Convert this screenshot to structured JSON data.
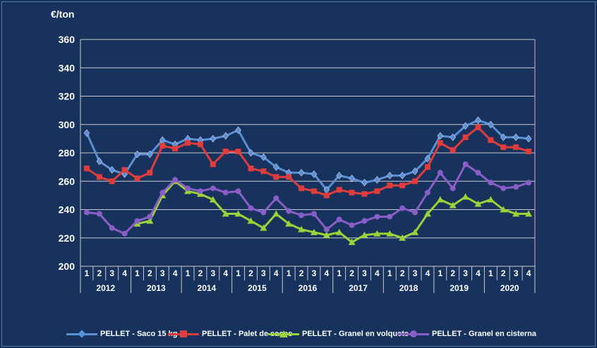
{
  "chart_data": {
    "type": "line",
    "ylabel": "€/ton",
    "ylim": [
      200,
      360
    ],
    "yticks": [
      200,
      220,
      240,
      260,
      280,
      300,
      320,
      340,
      360
    ],
    "quarters": [
      "1",
      "2",
      "3",
      "4",
      "1",
      "2",
      "3",
      "4",
      "1",
      "2",
      "3",
      "4",
      "1",
      "2",
      "3",
      "4",
      "1",
      "2",
      "3",
      "4",
      "1",
      "2",
      "3",
      "4",
      "1",
      "2",
      "3",
      "4",
      "1",
      "2",
      "3",
      "4",
      "1",
      "2",
      "3",
      "4"
    ],
    "years": [
      "2012",
      "2013",
      "2014",
      "2015",
      "2016",
      "2017",
      "2018",
      "2019",
      "2020"
    ],
    "grid": true,
    "legend_position": "bottom",
    "series": [
      {
        "name": "PELLET - Saco 15 kg",
        "color": "#5b8fd6",
        "marker": "diamond",
        "values": [
          294,
          274,
          268,
          265,
          279,
          279,
          289,
          286,
          290,
          289,
          290,
          292,
          296,
          280,
          277,
          270,
          266,
          266,
          265,
          254,
          264,
          262,
          259,
          261,
          264,
          264,
          267,
          276,
          292,
          291,
          299,
          303,
          300,
          291,
          291,
          290
        ]
      },
      {
        "name": "PELLET - Palet de sacos",
        "color": "#e03c3c",
        "marker": "square",
        "values": [
          269,
          263,
          260,
          268,
          262,
          266,
          285,
          283,
          287,
          286,
          272,
          281,
          281,
          269,
          267,
          263,
          263,
          255,
          253,
          250,
          254,
          252,
          251,
          253,
          257,
          257,
          260,
          270,
          287,
          282,
          291,
          298,
          289,
          284,
          284,
          281
        ]
      },
      {
        "name": "PELLET - Granel en volquete",
        "color": "#9bd23a",
        "marker": "triangle",
        "values": [
          null,
          null,
          null,
          null,
          230,
          232,
          250,
          260,
          253,
          251,
          247,
          237,
          237,
          232,
          227,
          237,
          230,
          226,
          224,
          222,
          224,
          217,
          222,
          223,
          223,
          220,
          224,
          237,
          247,
          243,
          249,
          244,
          247,
          240,
          237,
          237
        ]
      },
      {
        "name": "PELLET - Granel en cisterna",
        "color": "#8a5ec8",
        "marker": "circle",
        "values": [
          238,
          237,
          227,
          223,
          232,
          235,
          252,
          261,
          255,
          253,
          255,
          252,
          253,
          241,
          238,
          248,
          239,
          236,
          237,
          226,
          233,
          229,
          232,
          235,
          235,
          241,
          238,
          252,
          266,
          255,
          272,
          266,
          259,
          255,
          256,
          259
        ]
      }
    ]
  }
}
